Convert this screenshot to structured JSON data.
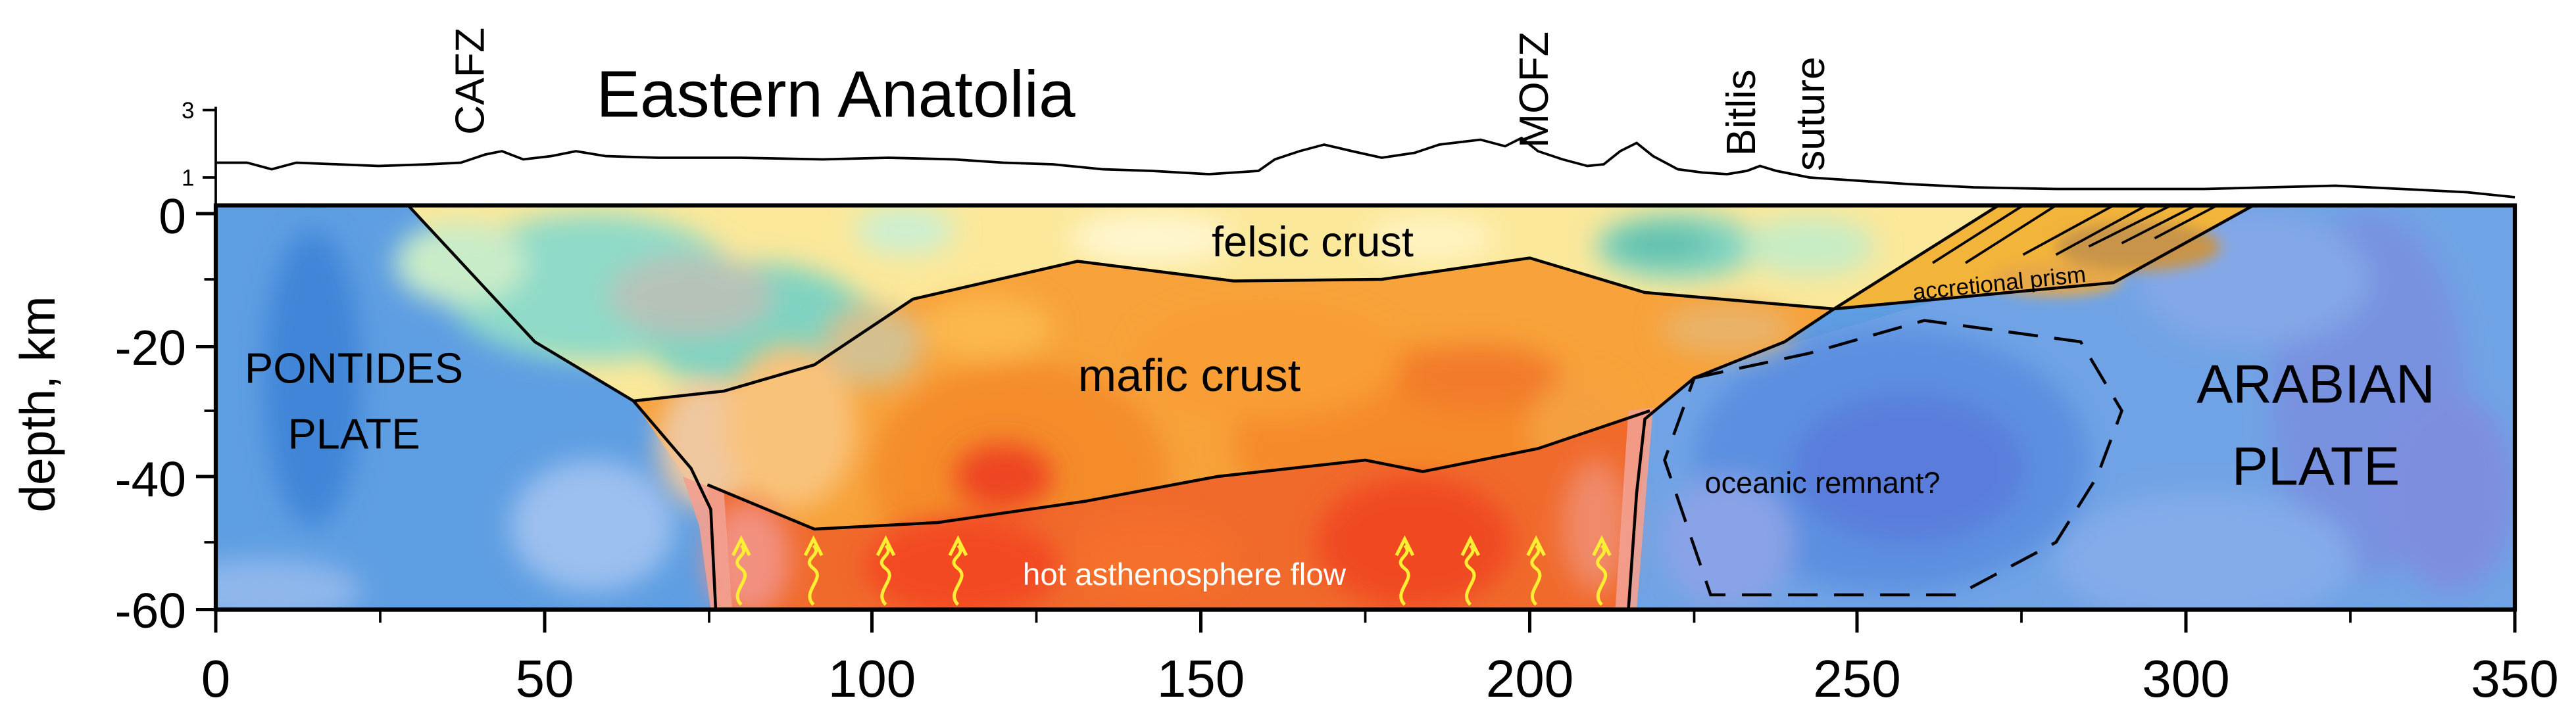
{
  "title": "Eastern Anatolia",
  "ylabel": "depth, km",
  "x_ticks": [
    "0",
    "50",
    "100",
    "150",
    "200",
    "250",
    "300",
    "350"
  ],
  "y_ticks": [
    "0",
    "-20",
    "-40",
    "-60"
  ],
  "elevation_ticks": [
    "3",
    "1"
  ],
  "faults": [
    {
      "name": "CAFZ",
      "x": 40
    },
    {
      "name": "MOFZ",
      "x": 200
    },
    {
      "name": "Bitlis",
      "x": 233
    },
    {
      "name": "suture",
      "x": 245
    }
  ],
  "labels": {
    "pontides_1": "PONTIDES",
    "pontides_2": "PLATE",
    "arabian_1": "ARABIAN",
    "arabian_2": "PLATE",
    "felsic": "felsic crust",
    "mafic": "mafic crust",
    "prism": "accretional prism",
    "oceanic": "oceanic remnant?",
    "asthenosphere": "hot asthenosphere flow"
  },
  "colors": {
    "plate_blue": "#5b9ce0",
    "mafic_orange": "#f7a23a",
    "asthenosphere_red": "#ee5a2a",
    "felsic_yellow": "#fbe89a",
    "teal": "#93dccb",
    "arrow_yellow": "#ffee33"
  },
  "chart_data": {
    "type": "cross-section",
    "xlim": [
      0,
      350
    ],
    "ylim": [
      -60,
      0
    ],
    "ylabel": "depth, km",
    "elevation_km": [
      [
        0,
        1.6
      ],
      [
        20,
        1.4
      ],
      [
        40,
        1.7
      ],
      [
        60,
        1.7
      ],
      [
        80,
        1.6
      ],
      [
        100,
        1.5
      ],
      [
        125,
        1.1
      ],
      [
        140,
        1.9
      ],
      [
        160,
        1.6
      ],
      [
        180,
        2.0
      ],
      [
        195,
        2.3
      ],
      [
        210,
        1.7
      ],
      [
        216,
        2.0
      ],
      [
        230,
        1.2
      ],
      [
        260,
        0.8
      ],
      [
        300,
        0.9
      ],
      [
        325,
        0.9
      ],
      [
        350,
        0.6
      ]
    ],
    "asthenosphere_arrows_x": [
      80,
      91,
      102,
      113,
      181,
      191,
      201,
      211
    ]
  }
}
